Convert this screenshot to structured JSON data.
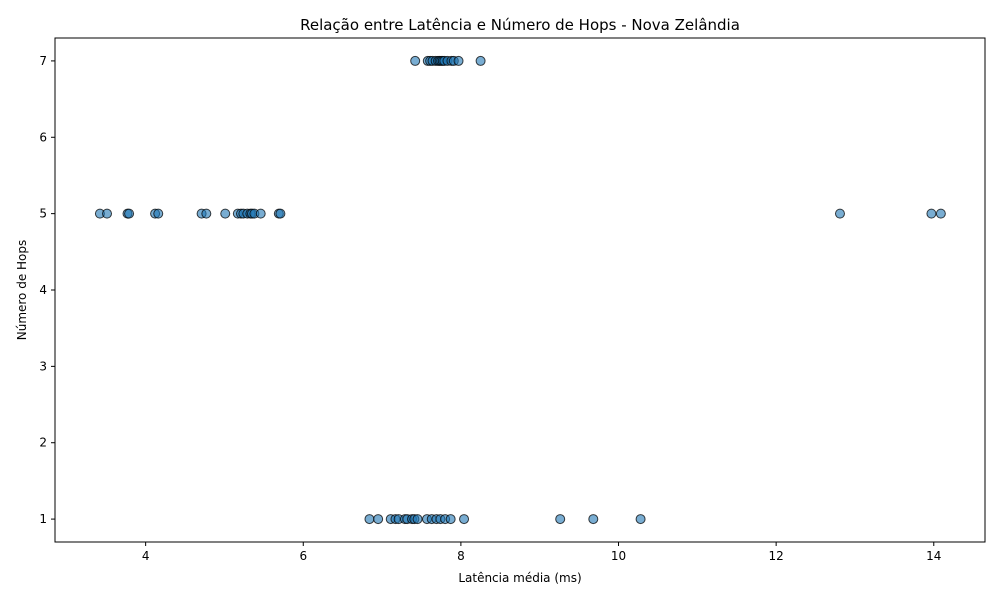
{
  "chart_data": {
    "type": "scatter",
    "title": "Relação entre Latência e Número de Hops - Nova Zelândia",
    "xlabel": "Latência média (ms)",
    "ylabel": "Número de Hops",
    "xlim": [
      2.85,
      14.65
    ],
    "ylim": [
      0.7,
      7.3
    ],
    "xticks": [
      4,
      6,
      8,
      10,
      12,
      14
    ],
    "yticks": [
      1,
      2,
      3,
      4,
      5,
      6,
      7
    ],
    "grid": false,
    "legend": "none",
    "marker_color": "#1f77b4",
    "marker_edge_color": "#000000",
    "marker_alpha": 0.6,
    "series": [
      {
        "points": [
          [
            3.42,
            5
          ],
          [
            3.51,
            5
          ],
          [
            3.77,
            5
          ],
          [
            3.79,
            5
          ],
          [
            4.12,
            5
          ],
          [
            4.16,
            5
          ],
          [
            4.71,
            5
          ],
          [
            4.77,
            5
          ],
          [
            5.01,
            5
          ],
          [
            5.17,
            5
          ],
          [
            5.21,
            5
          ],
          [
            5.24,
            5
          ],
          [
            5.29,
            5
          ],
          [
            5.33,
            5
          ],
          [
            5.35,
            5
          ],
          [
            5.38,
            5
          ],
          [
            5.46,
            5
          ],
          [
            5.69,
            5
          ],
          [
            5.71,
            5
          ],
          [
            12.81,
            5
          ],
          [
            13.97,
            5
          ],
          [
            14.09,
            5
          ],
          [
            7.42,
            7
          ],
          [
            7.58,
            7
          ],
          [
            7.61,
            7
          ],
          [
            7.64,
            7
          ],
          [
            7.68,
            7
          ],
          [
            7.71,
            7
          ],
          [
            7.73,
            7
          ],
          [
            7.75,
            7
          ],
          [
            7.77,
            7
          ],
          [
            7.79,
            7
          ],
          [
            7.83,
            7
          ],
          [
            7.88,
            7
          ],
          [
            7.91,
            7
          ],
          [
            7.97,
            7
          ],
          [
            8.25,
            7
          ],
          [
            6.84,
            1
          ],
          [
            6.95,
            1
          ],
          [
            7.11,
            1
          ],
          [
            7.17,
            1
          ],
          [
            7.21,
            1
          ],
          [
            7.29,
            1
          ],
          [
            7.32,
            1
          ],
          [
            7.38,
            1
          ],
          [
            7.41,
            1
          ],
          [
            7.45,
            1
          ],
          [
            7.57,
            1
          ],
          [
            7.63,
            1
          ],
          [
            7.69,
            1
          ],
          [
            7.74,
            1
          ],
          [
            7.8,
            1
          ],
          [
            7.87,
            1
          ],
          [
            8.04,
            1
          ],
          [
            9.26,
            1
          ],
          [
            9.68,
            1
          ],
          [
            10.28,
            1
          ]
        ]
      }
    ]
  }
}
